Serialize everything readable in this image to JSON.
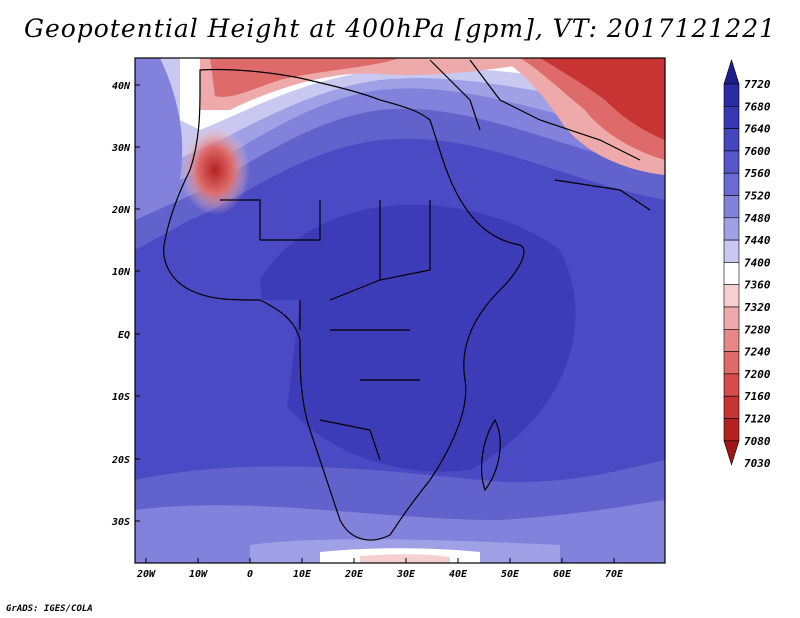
{
  "title": "Geopotential Height at 400hPa [gpm], VT: 2017121221",
  "credit": "GrADS: IGES/COLA",
  "map": {
    "region": "Africa",
    "variable": "Geopotential Height",
    "level": "400hPa",
    "units": "gpm",
    "valid_time": "2017121221",
    "lon_labels": [
      "20W",
      "10W",
      "0",
      "10E",
      "20E",
      "30E",
      "40E",
      "50E",
      "60E",
      "70E"
    ],
    "lat_labels": [
      "40N",
      "30N",
      "20N",
      "10N",
      "EQ",
      "10S",
      "20S",
      "30S"
    ]
  },
  "colorbar": {
    "levels": [
      "7720",
      "7680",
      "7640",
      "7600",
      "7560",
      "7520",
      "7480",
      "7440",
      "7400",
      "7360",
      "7320",
      "7280",
      "7240",
      "7200",
      "7160",
      "7120",
      "7080",
      "7030"
    ],
    "colors": [
      "#1e1e8c",
      "#2b2ba6",
      "#3838b4",
      "#4545be",
      "#5656c8",
      "#6a6ad2",
      "#8282dc",
      "#a0a0e6",
      "#c8c8f0",
      "#ffffff",
      "#f6d0d0",
      "#eeaaaa",
      "#e68888",
      "#de6a6a",
      "#d44c4c",
      "#c83434",
      "#b42222",
      "#a01616"
    ]
  }
}
